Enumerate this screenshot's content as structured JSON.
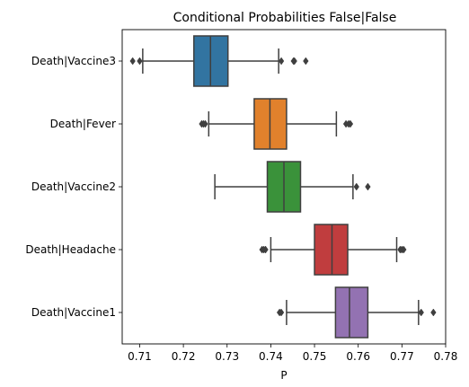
{
  "chart_data": {
    "type": "boxplot",
    "orientation": "horizontal",
    "title": "Conditional Probabilities False|False",
    "xlabel": "P",
    "ylabel": "",
    "xlim": [
      0.706,
      0.78
    ],
    "x_ticks": [
      "0.71",
      "0.72",
      "0.73",
      "0.74",
      "0.75",
      "0.76",
      "0.77",
      "0.78"
    ],
    "x_tick_values": [
      0.71,
      0.72,
      0.73,
      0.74,
      0.75,
      0.76,
      0.77,
      0.78
    ],
    "grid": false,
    "legend": "none",
    "categories": [
      "Death|Vaccine3",
      "Death|Fever",
      "Death|Vaccine2",
      "Death|Headache",
      "Death|Vaccine1"
    ],
    "series": [
      {
        "category": "Death|Vaccine3",
        "whisker_low": 0.7107,
        "q1": 0.7224,
        "median": 0.7262,
        "q3": 0.7302,
        "whisker_high": 0.7418,
        "outliers": [
          0.7084,
          0.71,
          0.7424,
          0.7452,
          0.7454,
          0.748
        ],
        "color": "#3274a1"
      },
      {
        "category": "Death|Fever",
        "whisker_low": 0.7258,
        "q1": 0.7362,
        "median": 0.7398,
        "q3": 0.7436,
        "whisker_high": 0.755,
        "outliers": [
          0.7242,
          0.7246,
          0.725,
          0.7572,
          0.7578,
          0.7582
        ],
        "color": "#e1812c"
      },
      {
        "category": "Death|Vaccine2",
        "whisker_low": 0.7272,
        "q1": 0.7392,
        "median": 0.743,
        "q3": 0.7468,
        "whisker_high": 0.7588,
        "outliers": [
          0.7596,
          0.7622
        ],
        "color": "#3a923a"
      },
      {
        "category": "Death|Headache",
        "whisker_low": 0.74,
        "q1": 0.75,
        "median": 0.754,
        "q3": 0.7576,
        "whisker_high": 0.7688,
        "outliers": [
          0.738,
          0.7384,
          0.7388,
          0.7696,
          0.77,
          0.7704
        ],
        "color": "#c03d3e"
      },
      {
        "category": "Death|Vaccine1",
        "whisker_low": 0.7436,
        "q1": 0.7548,
        "median": 0.758,
        "q3": 0.7622,
        "whisker_high": 0.7738,
        "outliers": [
          0.742,
          0.7424,
          0.7744,
          0.7772
        ],
        "color": "#9372b2"
      }
    ]
  }
}
